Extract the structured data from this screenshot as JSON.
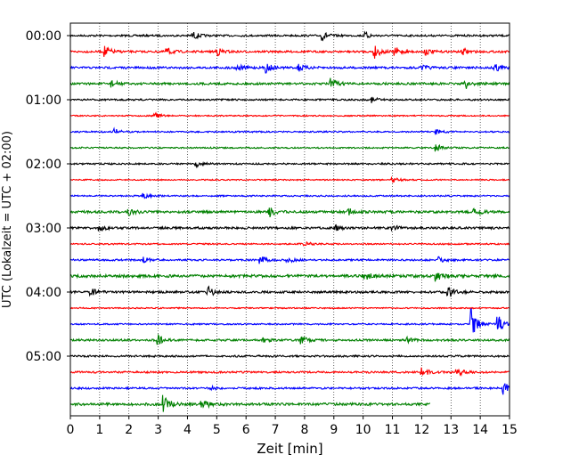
{
  "chart_data": {
    "type": "line",
    "title": "",
    "xlabel": "Zeit  [min]",
    "ylabel": "UTC (Lokalzeit = UTC + 02:00)",
    "xlim": [
      0,
      15
    ],
    "x_ticks": [
      "0",
      "1",
      "2",
      "3",
      "4",
      "5",
      "6",
      "7",
      "8",
      "9",
      "10",
      "11",
      "12",
      "13",
      "14",
      "15"
    ],
    "y_tick_labels": [
      "00:00",
      "01:00",
      "02:00",
      "03:00",
      "04:00",
      "05:00"
    ],
    "grid": "vertical dotted lines at each minute",
    "trace_interval_min": 15,
    "trace_colors": [
      "#000000",
      "#ff0000",
      "#0000ff",
      "#008000"
    ],
    "traces": [
      {
        "start": "00:00",
        "end_min": 15,
        "color": "#000000",
        "noise": 1.0,
        "events": [
          {
            "x": 4.2,
            "amp": 4
          },
          {
            "x": 8.6,
            "amp": 5
          },
          {
            "x": 10.1,
            "amp": 3
          }
        ]
      },
      {
        "start": "00:15",
        "end_min": 15,
        "color": "#ff0000",
        "noise": 1.1,
        "events": [
          {
            "x": 1.2,
            "amp": 6
          },
          {
            "x": 3.3,
            "amp": 4
          },
          {
            "x": 5.0,
            "amp": 5
          },
          {
            "x": 10.4,
            "amp": 7
          },
          {
            "x": 11.1,
            "amp": 5
          },
          {
            "x": 12.1,
            "amp": 4
          },
          {
            "x": 13.4,
            "amp": 4
          }
        ]
      },
      {
        "start": "00:30",
        "end_min": 15,
        "color": "#0000ff",
        "noise": 1.2,
        "events": [
          {
            "x": 5.7,
            "amp": 4
          },
          {
            "x": 6.7,
            "amp": 5
          },
          {
            "x": 7.8,
            "amp": 4
          },
          {
            "x": 12.0,
            "amp": 3
          },
          {
            "x": 14.5,
            "amp": 5
          }
        ]
      },
      {
        "start": "00:45",
        "end_min": 15,
        "color": "#008000",
        "noise": 1.2,
        "events": [
          {
            "x": 1.4,
            "amp": 4
          },
          {
            "x": 8.9,
            "amp": 6
          },
          {
            "x": 13.5,
            "amp": 6
          }
        ]
      },
      {
        "start": "01:00",
        "end_min": 15,
        "color": "#000000",
        "noise": 0.9,
        "events": [
          {
            "x": 10.3,
            "amp": 3
          }
        ]
      },
      {
        "start": "01:15",
        "end_min": 15,
        "color": "#ff0000",
        "noise": 0.7,
        "events": [
          {
            "x": 2.9,
            "amp": 3
          }
        ]
      },
      {
        "start": "01:30",
        "end_min": 15,
        "color": "#0000ff",
        "noise": 0.8,
        "events": [
          {
            "x": 1.5,
            "amp": 4
          },
          {
            "x": 12.5,
            "amp": 3
          }
        ]
      },
      {
        "start": "01:45",
        "end_min": 15,
        "color": "#008000",
        "noise": 0.8,
        "events": [
          {
            "x": 12.5,
            "amp": 4
          }
        ]
      },
      {
        "start": "02:00",
        "end_min": 15,
        "color": "#000000",
        "noise": 0.9,
        "events": [
          {
            "x": 4.3,
            "amp": 3
          }
        ]
      },
      {
        "start": "02:15",
        "end_min": 15,
        "color": "#ff0000",
        "noise": 0.7,
        "events": [
          {
            "x": 11.0,
            "amp": 3
          }
        ]
      },
      {
        "start": "02:30",
        "end_min": 15,
        "color": "#0000ff",
        "noise": 0.8,
        "events": [
          {
            "x": 2.5,
            "amp": 3
          }
        ]
      },
      {
        "start": "02:45",
        "end_min": 15,
        "color": "#008000",
        "noise": 1.3,
        "events": [
          {
            "x": 2.0,
            "amp": 4
          },
          {
            "x": 6.8,
            "amp": 5
          },
          {
            "x": 9.5,
            "amp": 4
          },
          {
            "x": 13.8,
            "amp": 5
          }
        ]
      },
      {
        "start": "03:00",
        "end_min": 15,
        "color": "#000000",
        "noise": 1.2,
        "events": [
          {
            "x": 1.0,
            "amp": 3
          },
          {
            "x": 9.0,
            "amp": 4
          },
          {
            "x": 11.0,
            "amp": 3
          }
        ]
      },
      {
        "start": "03:15",
        "end_min": 15,
        "color": "#ff0000",
        "noise": 0.8,
        "events": [
          {
            "x": 8.0,
            "amp": 3
          }
        ]
      },
      {
        "start": "03:30",
        "end_min": 15,
        "color": "#0000ff",
        "noise": 1.0,
        "events": [
          {
            "x": 2.5,
            "amp": 3
          },
          {
            "x": 6.5,
            "amp": 4
          },
          {
            "x": 7.4,
            "amp": 4
          },
          {
            "x": 12.6,
            "amp": 3
          }
        ]
      },
      {
        "start": "03:45",
        "end_min": 15,
        "color": "#008000",
        "noise": 1.5,
        "events": [
          {
            "x": 10.0,
            "amp": 6
          },
          {
            "x": 12.5,
            "amp": 6
          }
        ]
      },
      {
        "start": "04:00",
        "end_min": 15,
        "color": "#000000",
        "noise": 1.2,
        "events": [
          {
            "x": 0.7,
            "amp": 4
          },
          {
            "x": 4.7,
            "amp": 6
          },
          {
            "x": 12.9,
            "amp": 7
          }
        ]
      },
      {
        "start": "04:15",
        "end_min": 15,
        "color": "#ff0000",
        "noise": 0.7,
        "events": []
      },
      {
        "start": "04:30",
        "end_min": 15,
        "color": "#0000ff",
        "noise": 0.8,
        "events": [
          {
            "x": 13.7,
            "amp": 18
          },
          {
            "x": 14.6,
            "amp": 10
          }
        ]
      },
      {
        "start": "04:45",
        "end_min": 15,
        "color": "#008000",
        "noise": 1.1,
        "events": [
          {
            "x": 3.0,
            "amp": 5
          },
          {
            "x": 6.6,
            "amp": 3
          },
          {
            "x": 7.9,
            "amp": 4
          },
          {
            "x": 11.5,
            "amp": 3
          }
        ]
      },
      {
        "start": "05:00",
        "end_min": 15,
        "color": "#000000",
        "noise": 1.0,
        "events": []
      },
      {
        "start": "05:15",
        "end_min": 15,
        "color": "#ff0000",
        "noise": 1.0,
        "events": [
          {
            "x": 12.0,
            "amp": 6
          },
          {
            "x": 13.2,
            "amp": 5
          }
        ]
      },
      {
        "start": "05:30",
        "end_min": 15,
        "color": "#0000ff",
        "noise": 1.0,
        "events": [
          {
            "x": 4.8,
            "amp": 3
          },
          {
            "x": 14.8,
            "amp": 7
          }
        ]
      },
      {
        "start": "05:45",
        "end_min": 12.3,
        "color": "#008000",
        "noise": 1.4,
        "events": [
          {
            "x": 3.2,
            "amp": 9
          },
          {
            "x": 4.5,
            "amp": 6
          }
        ]
      }
    ]
  }
}
